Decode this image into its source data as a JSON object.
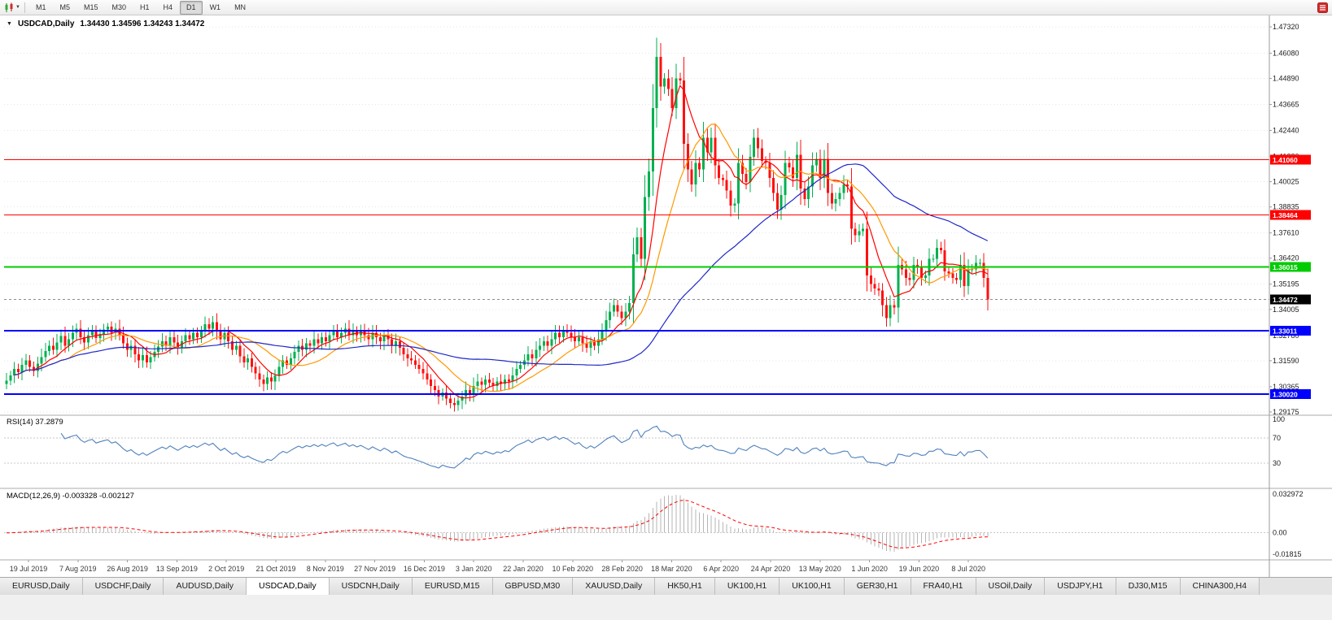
{
  "toolbar": {
    "timeframes": [
      {
        "label": "M1",
        "active": false
      },
      {
        "label": "M5",
        "active": false
      },
      {
        "label": "M15",
        "active": false
      },
      {
        "label": "M30",
        "active": false
      },
      {
        "label": "H1",
        "active": false
      },
      {
        "label": "H4",
        "active": false
      },
      {
        "label": "D1",
        "active": true
      },
      {
        "label": "W1",
        "active": false
      },
      {
        "label": "MN",
        "active": false
      }
    ]
  },
  "chart": {
    "title": "USDCAD,Daily",
    "ohlc": "1.34430 1.34596 1.34243 1.34472",
    "rsi_label": "RSI(14) 37.2879",
    "macd_label": "MACD(12,26,9) -0.003328 -0.002127",
    "collapse_triangle": "▼"
  },
  "chart_data": {
    "type": "candlestick",
    "symbol": "USDCAD",
    "timeframe": "Daily",
    "ohlc": {
      "open": "1.34430",
      "high": "1.34596",
      "low": "1.34243",
      "close": "1.34472"
    },
    "price_range": {
      "min": 1.2902,
      "max": 1.4782
    },
    "price_axis_ticks": [
      "1.47320",
      "1.46080",
      "1.44890",
      "1.43665",
      "1.42440",
      "1.41220",
      "1.40025",
      "1.38835",
      "1.37610",
      "1.36420",
      "1.35195",
      "1.34005",
      "1.32780",
      "1.31590",
      "1.30365",
      "1.29175"
    ],
    "x_labels": [
      "19 Jul 2019",
      "7 Aug 2019",
      "26 Aug 2019",
      "13 Sep 2019",
      "2 Oct 2019",
      "21 Oct 2019",
      "8 Nov 2019",
      "27 Nov 2019",
      "16 Dec 2019",
      "3 Jan 2020",
      "22 Jan 2020",
      "10 Feb 2020",
      "28 Feb 2020",
      "18 Mar 2020",
      "6 Apr 2020",
      "24 Apr 2020",
      "13 May 2020",
      "1 Jun 2020",
      "19 Jun 2020",
      "8 Jul 2020"
    ],
    "closes": [
      1.3065,
      1.309,
      1.312,
      1.3105,
      1.314,
      1.316,
      1.313,
      1.311,
      1.3145,
      1.3175,
      1.3205,
      1.323,
      1.321,
      1.3245,
      1.3275,
      1.323,
      1.326,
      1.329,
      1.331,
      1.327,
      1.3245,
      1.328,
      1.33,
      1.3265,
      1.3285,
      1.3305,
      1.332,
      1.329,
      1.331,
      1.328,
      1.324,
      1.321,
      1.323,
      1.319,
      1.316,
      1.3185,
      1.315,
      1.3175,
      1.32,
      1.3225,
      1.325,
      1.323,
      1.327,
      1.3245,
      1.322,
      1.325,
      1.328,
      1.326,
      1.329,
      1.327,
      1.33,
      1.333,
      1.331,
      1.334,
      1.33,
      1.326,
      1.329,
      1.325,
      1.321,
      1.323,
      1.318,
      1.315,
      1.317,
      1.313,
      1.31,
      1.307,
      1.305,
      1.308,
      1.306,
      1.309,
      1.313,
      1.316,
      1.314,
      1.317,
      1.32,
      1.323,
      1.321,
      1.324,
      1.323,
      1.326,
      1.324,
      1.327,
      1.325,
      1.328,
      1.33,
      1.327,
      1.329,
      1.331,
      1.328,
      1.33,
      1.328,
      1.33,
      1.328,
      1.326,
      1.329,
      1.327,
      1.325,
      1.328,
      1.326,
      1.323,
      1.325,
      1.322,
      1.319,
      1.317,
      1.316,
      1.314,
      1.312,
      1.31,
      1.307,
      1.304,
      1.302,
      1.299,
      1.301,
      1.298,
      1.296,
      1.295,
      1.297,
      1.299,
      1.302,
      1.3,
      1.304,
      1.306,
      1.3045,
      1.307,
      1.3055,
      1.304,
      1.306,
      1.305,
      1.307,
      1.306,
      1.309,
      1.312,
      1.314,
      1.316,
      1.319,
      1.317,
      1.321,
      1.323,
      1.325,
      1.323,
      1.326,
      1.329,
      1.327,
      1.33,
      1.329,
      1.327,
      1.325,
      1.327,
      1.324,
      1.322,
      1.325,
      1.323,
      1.326,
      1.33,
      1.335,
      1.339,
      1.342,
      1.339,
      1.336,
      1.339,
      1.343,
      1.366,
      1.374,
      1.364,
      1.393,
      1.405,
      1.435,
      1.459,
      1.445,
      1.449,
      1.444,
      1.435,
      1.449,
      1.448,
      1.418,
      1.406,
      1.399,
      1.409,
      1.406,
      1.421,
      1.414,
      1.421,
      1.408,
      1.402,
      1.401,
      1.396,
      1.389,
      1.39,
      1.409,
      1.404,
      1.4,
      1.412,
      1.421,
      1.416,
      1.41,
      1.409,
      1.402,
      1.395,
      1.387,
      1.394,
      1.409,
      1.407,
      1.402,
      1.413,
      1.397,
      1.392,
      1.398,
      1.408,
      1.411,
      1.402,
      1.411,
      1.395,
      1.39,
      1.392,
      1.395,
      1.399,
      1.398,
      1.378,
      1.375,
      1.377,
      1.378,
      1.356,
      1.352,
      1.35,
      1.349,
      1.342,
      1.336,
      1.342,
      1.341,
      1.361,
      1.359,
      1.355,
      1.354,
      1.361,
      1.36,
      1.355,
      1.356,
      1.364,
      1.364,
      1.369,
      1.368,
      1.358,
      1.357,
      1.355,
      1.354,
      1.361,
      1.351,
      1.359,
      1.359,
      1.362,
      1.362,
      1.355,
      1.34472
    ],
    "colors": {
      "up": "#00b050",
      "down": "#ff1010",
      "ma_fast": "#ff0000",
      "ma_mid": "#ff9900",
      "ma_slow": "#1f28c8",
      "rsi": "#4f81bd",
      "macd_hist": "#b6b6b6",
      "macd_signal": "#ff0000",
      "grid": "#e6e6e6",
      "separator": "#ababab",
      "axis_line": "#9a9a9a",
      "current_price_tag": "#000000",
      "current_price_line": "#8c8c8c"
    },
    "moving_averages": [
      {
        "period": 8,
        "color_key": "ma_fast"
      },
      {
        "period": 17,
        "color_key": "ma_mid"
      },
      {
        "period": 55,
        "color_key": "ma_slow"
      }
    ],
    "hlines": [
      {
        "value": 1.4106,
        "label": "1.41060",
        "color": "#ff0000",
        "width": 1
      },
      {
        "value": 1.38464,
        "label": "1.38464",
        "color": "#ff0000",
        "width": 1
      },
      {
        "value": 1.36015,
        "label": "1.36015",
        "color": "#00cc00",
        "width": 2
      },
      {
        "value": 1.33011,
        "label": "1.33011",
        "color": "#0000ff",
        "width": 2
      },
      {
        "value": 1.3002,
        "label": "1.30020",
        "color": "#0000ff",
        "width": 2
      }
    ],
    "current_price": {
      "value": 1.34472,
      "label": "1.34472"
    },
    "rsi": {
      "period": 14,
      "value_label": "37.2879",
      "axis_ticks": [
        "100",
        "70",
        "30"
      ],
      "levels": [
        70,
        30
      ]
    },
    "macd": {
      "fast": 12,
      "slow": 26,
      "signal": 9,
      "main_label": "-0.003328",
      "signal_label": "-0.002127",
      "axis_ticks": [
        "0.032972",
        "0.00",
        "-0.01815"
      ],
      "max": 0.032972,
      "min": -0.01815
    }
  },
  "tabs": [
    {
      "label": "EURUSD,Daily",
      "active": false
    },
    {
      "label": "USDCHF,Daily",
      "active": false
    },
    {
      "label": "AUDUSD,Daily",
      "active": false
    },
    {
      "label": "USDCAD,Daily",
      "active": true
    },
    {
      "label": "USDCNH,Daily",
      "active": false
    },
    {
      "label": "EURUSD,M15",
      "active": false
    },
    {
      "label": "GBPUSD,M30",
      "active": false
    },
    {
      "label": "XAUUSD,Daily",
      "active": false
    },
    {
      "label": "HK50,H1",
      "active": false
    },
    {
      "label": "UK100,H1",
      "active": false
    },
    {
      "label": "UK100,H1",
      "active": false
    },
    {
      "label": "GER30,H1",
      "active": false
    },
    {
      "label": "FRA40,H1",
      "active": false
    },
    {
      "label": "USOil,Daily",
      "active": false
    },
    {
      "label": "USDJPY,H1",
      "active": false
    },
    {
      "label": "DJ30,M15",
      "active": false
    },
    {
      "label": "CHINA300,H4",
      "active": false
    }
  ]
}
